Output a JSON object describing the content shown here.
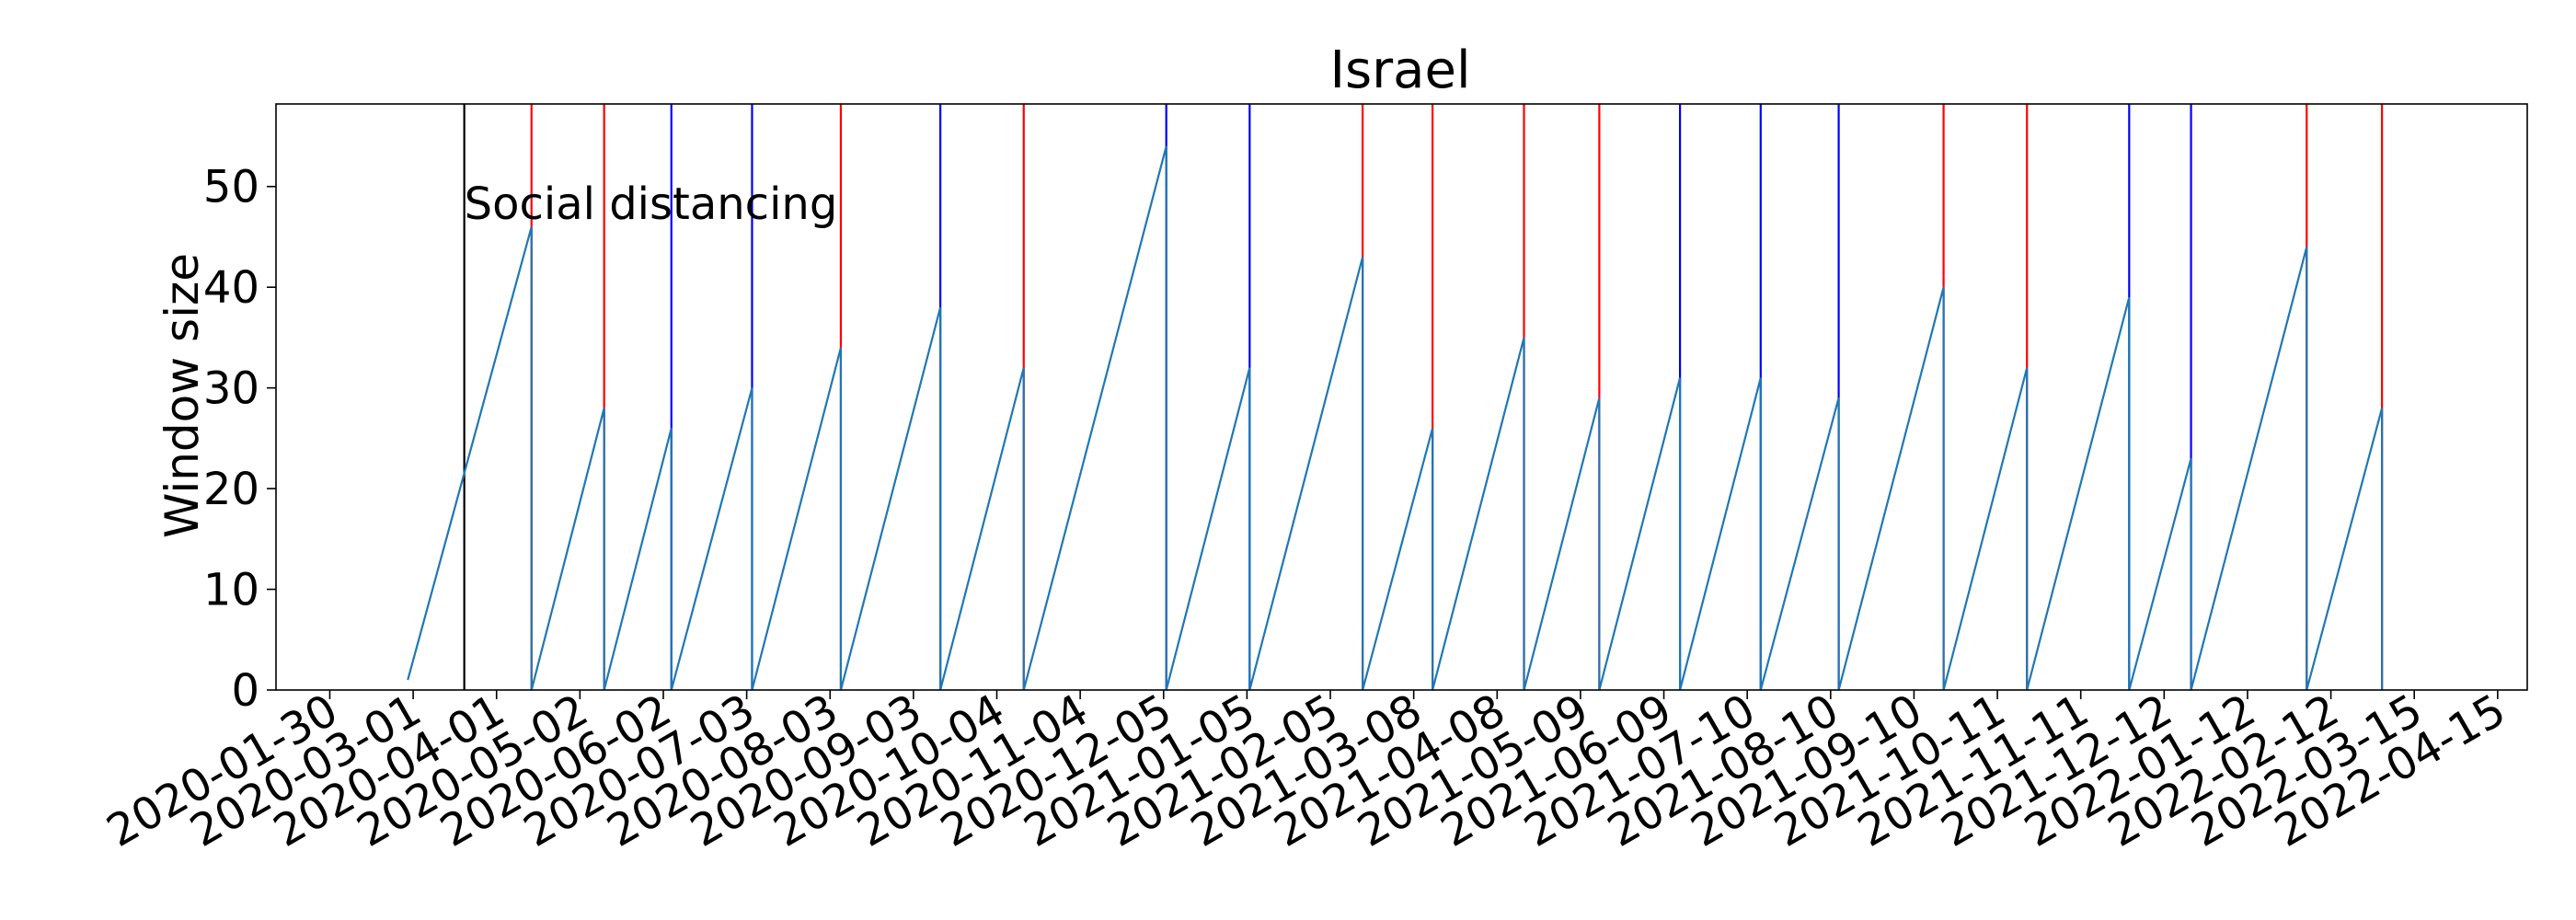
{
  "chart_data": {
    "type": "line",
    "title": "Israel",
    "xlabel": "",
    "ylabel": "Window size",
    "xlim": [
      "2020-01-10",
      "2022-04-26"
    ],
    "ylim": [
      0,
      58.2
    ],
    "yticks": [
      0,
      10,
      20,
      30,
      40,
      50
    ],
    "xticks": [
      "2020-01-30",
      "2020-03-01",
      "2020-04-01",
      "2020-05-02",
      "2020-06-02",
      "2020-07-03",
      "2020-08-03",
      "2020-09-03",
      "2020-10-04",
      "2020-11-04",
      "2020-12-05",
      "2021-01-05",
      "2021-02-05",
      "2021-03-08",
      "2021-04-08",
      "2021-05-09",
      "2021-06-09",
      "2021-07-10",
      "2021-08-10",
      "2021-09-10",
      "2021-10-11",
      "2021-11-11",
      "2021-12-12",
      "2022-01-12",
      "2022-02-12",
      "2022-03-15",
      "2022-04-15"
    ],
    "grid": false,
    "annotations": [
      {
        "text": "Social distancing",
        "date": "2020-03-20",
        "color": "#000000"
      }
    ],
    "vertical_lines": [
      {
        "date": "2020-03-20",
        "color": "#000000"
      },
      {
        "date": "2020-04-14",
        "color": "#ff0000"
      },
      {
        "date": "2020-05-11",
        "color": "#ff0000"
      },
      {
        "date": "2020-06-05",
        "color": "#0000ff"
      },
      {
        "date": "2020-07-05",
        "color": "#0000ff"
      },
      {
        "date": "2020-08-07",
        "color": "#ff0000"
      },
      {
        "date": "2020-09-13",
        "color": "#0000ff"
      },
      {
        "date": "2020-10-14",
        "color": "#ff0000"
      },
      {
        "date": "2020-12-06",
        "color": "#0000ff"
      },
      {
        "date": "2021-01-06",
        "color": "#0000ff"
      },
      {
        "date": "2021-02-17",
        "color": "#ff0000"
      },
      {
        "date": "2021-03-15",
        "color": "#ff0000"
      },
      {
        "date": "2021-04-18",
        "color": "#ff0000"
      },
      {
        "date": "2021-05-16",
        "color": "#ff0000"
      },
      {
        "date": "2021-06-15",
        "color": "#0000ff"
      },
      {
        "date": "2021-07-15",
        "color": "#0000ff"
      },
      {
        "date": "2021-08-13",
        "color": "#0000ff"
      },
      {
        "date": "2021-09-21",
        "color": "#ff0000"
      },
      {
        "date": "2021-10-22",
        "color": "#ff0000"
      },
      {
        "date": "2021-11-29",
        "color": "#0000ff"
      },
      {
        "date": "2021-12-22",
        "color": "#0000ff"
      },
      {
        "date": "2022-02-03",
        "color": "#ff0000"
      },
      {
        "date": "2022-03-03",
        "color": "#ff0000"
      }
    ],
    "series": [
      {
        "color": "#1f77b4",
        "points": [
          [
            "2020-02-28",
            1
          ],
          [
            "2020-04-14",
            46
          ],
          [
            "2020-04-14",
            0
          ],
          [
            "2020-05-11",
            28
          ],
          [
            "2020-05-11",
            0
          ],
          [
            "2020-06-05",
            26
          ],
          [
            "2020-06-05",
            0
          ],
          [
            "2020-07-05",
            30
          ],
          [
            "2020-07-05",
            0
          ],
          [
            "2020-08-07",
            34
          ],
          [
            "2020-08-07",
            0
          ],
          [
            "2020-09-13",
            38
          ],
          [
            "2020-09-13",
            0
          ],
          [
            "2020-10-14",
            32
          ],
          [
            "2020-10-14",
            0
          ],
          [
            "2020-12-06",
            54
          ],
          [
            "2020-12-06",
            0
          ],
          [
            "2021-01-06",
            32
          ],
          [
            "2021-01-06",
            0
          ],
          [
            "2021-02-17",
            43
          ],
          [
            "2021-02-17",
            0
          ],
          [
            "2021-03-15",
            26
          ],
          [
            "2021-03-15",
            0
          ],
          [
            "2021-04-18",
            35
          ],
          [
            "2021-04-18",
            0
          ],
          [
            "2021-05-16",
            29
          ],
          [
            "2021-05-16",
            0
          ],
          [
            "2021-06-15",
            31
          ],
          [
            "2021-06-15",
            0
          ],
          [
            "2021-07-15",
            31
          ],
          [
            "2021-07-15",
            0
          ],
          [
            "2021-08-13",
            29
          ],
          [
            "2021-08-13",
            0
          ],
          [
            "2021-09-21",
            40
          ],
          [
            "2021-09-21",
            0
          ],
          [
            "2021-10-22",
            32
          ],
          [
            "2021-10-22",
            0
          ],
          [
            "2021-11-29",
            39
          ],
          [
            "2021-11-29",
            0
          ],
          [
            "2021-12-22",
            23
          ],
          [
            "2021-12-22",
            0
          ],
          [
            "2022-02-03",
            44
          ],
          [
            "2022-02-03",
            0
          ],
          [
            "2022-03-03",
            28
          ],
          [
            "2022-03-03",
            0
          ]
        ]
      }
    ]
  }
}
